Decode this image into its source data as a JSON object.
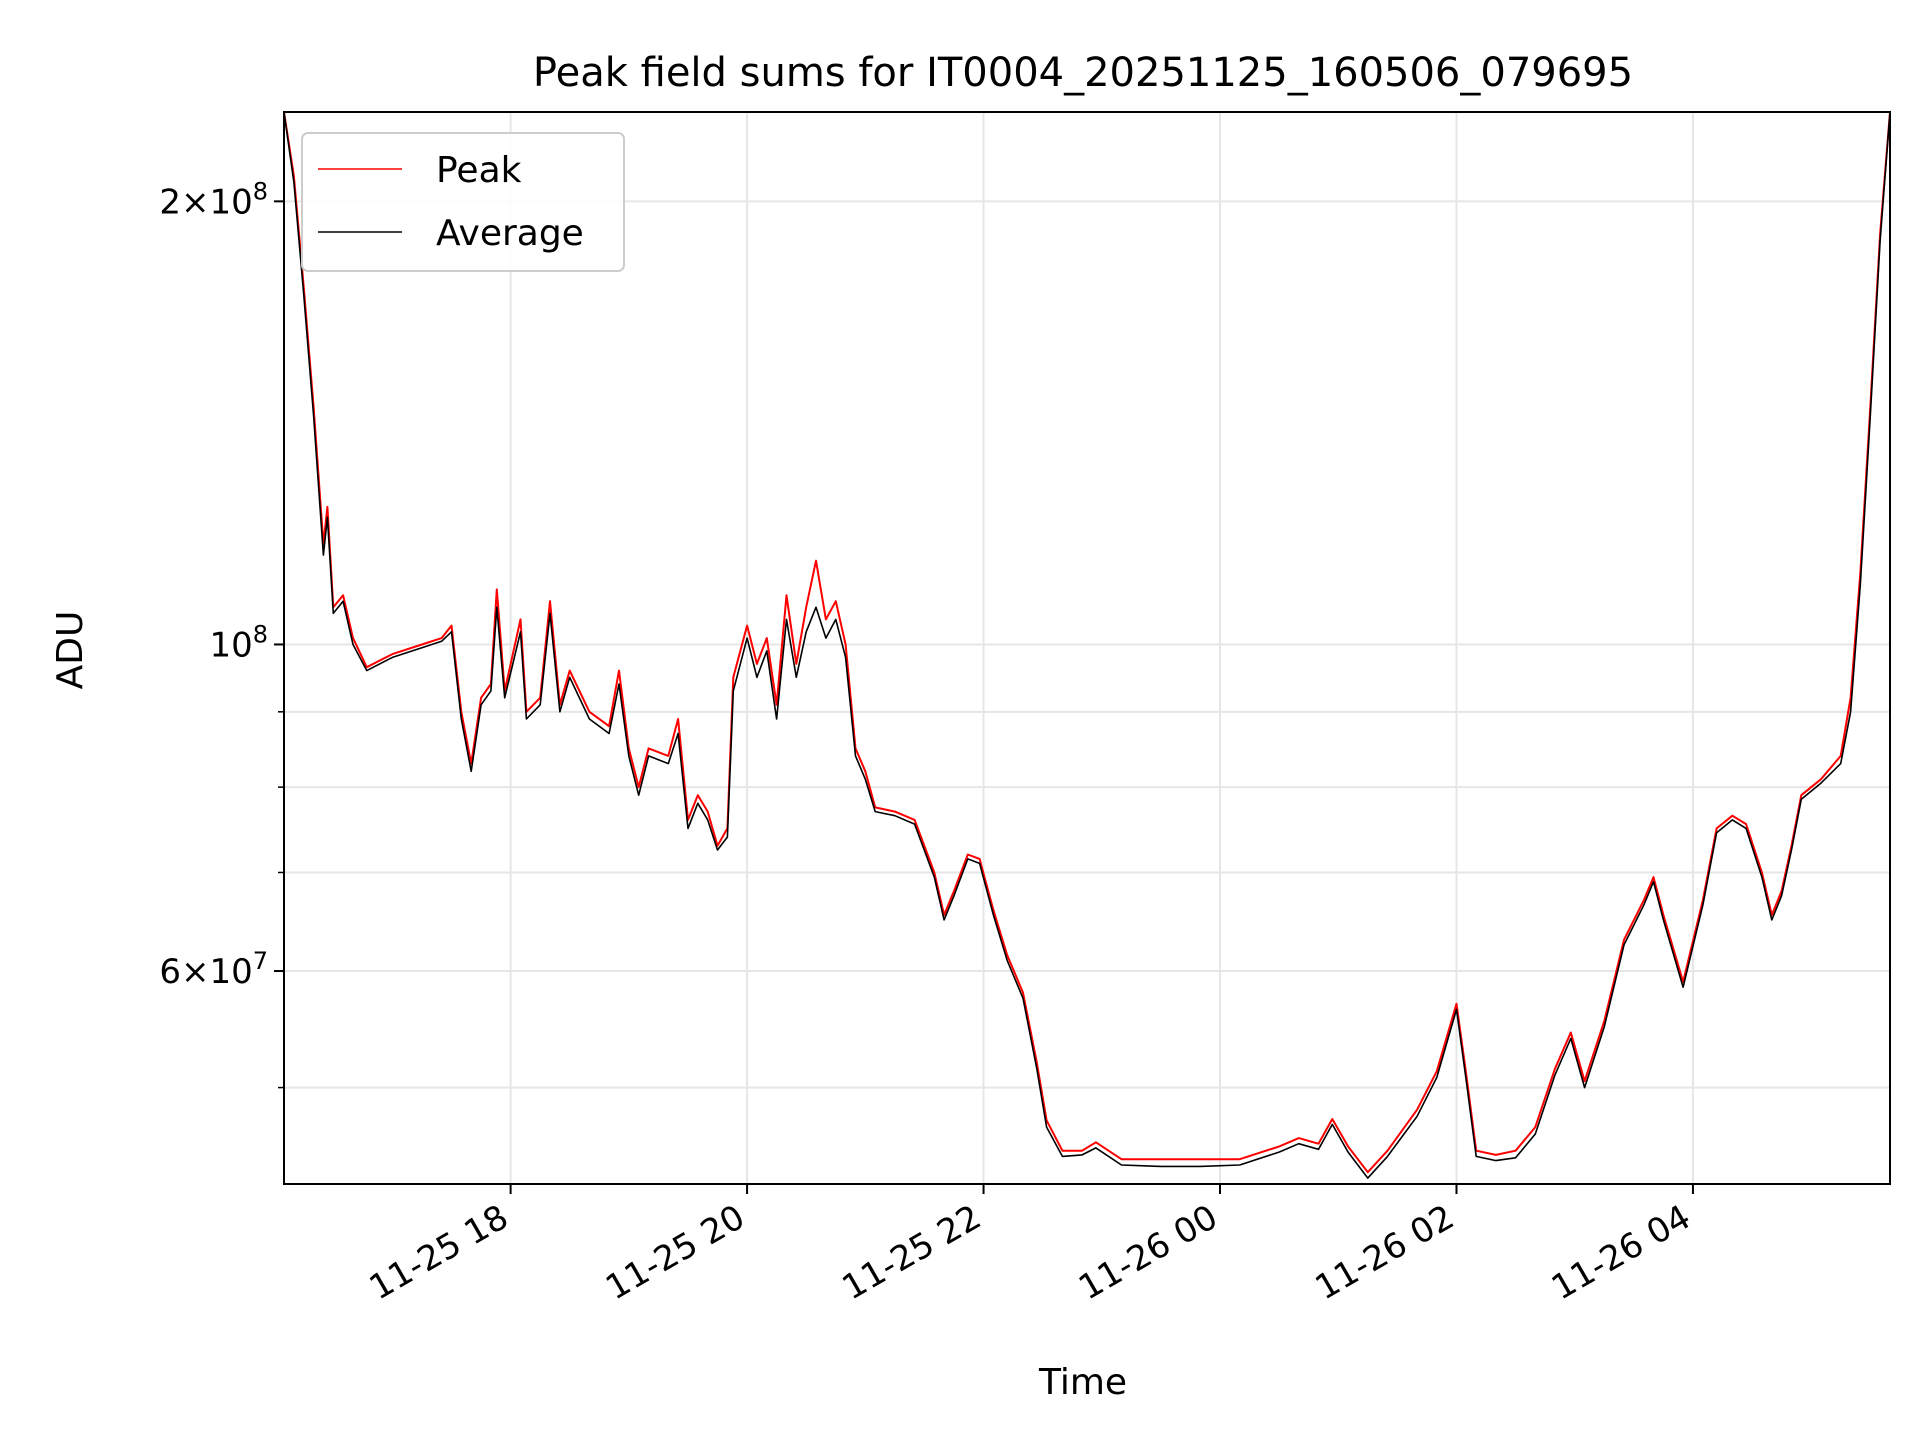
{
  "chart_data": {
    "type": "line",
    "title": "Peak field sums for IT0004_20251125_160506_079695",
    "xlabel": "Time",
    "ylabel": "ADU",
    "yscale": "log",
    "grid": true,
    "legend_position": "upper-left",
    "xlim": [
      "2025-11-25 16:05",
      "2025-11-26 05:40"
    ],
    "ylim": [
      43000000,
      230000000
    ],
    "xticks": [
      {
        "value": "2025-11-25 18:00",
        "label": "11-25 18"
      },
      {
        "value": "2025-11-25 20:00",
        "label": "11-25 20"
      },
      {
        "value": "2025-11-25 22:00",
        "label": "11-25 22"
      },
      {
        "value": "2025-11-26 00:00",
        "label": "11-26 00"
      },
      {
        "value": "2025-11-26 02:00",
        "label": "11-26 02"
      },
      {
        "value": "2025-11-26 04:00",
        "label": "11-26 04"
      }
    ],
    "yticks_major": [
      {
        "value": 60000000,
        "mantissa": "6",
        "exponent": "7"
      },
      {
        "value": 100000000,
        "mantissa": "",
        "exponent": "8"
      },
      {
        "value": 200000000,
        "mantissa": "2",
        "exponent": "8"
      }
    ],
    "yticks_minor": [
      50000000,
      70000000,
      80000000,
      90000000
    ],
    "series": [
      {
        "name": "Peak",
        "color": "#ff0000",
        "points": [
          [
            "2025-11-25 16:05",
            230000000
          ],
          [
            "2025-11-25 16:10",
            208000000
          ],
          [
            "2025-11-25 16:15",
            175000000
          ],
          [
            "2025-11-25 16:20",
            145000000
          ],
          [
            "2025-11-25 16:25",
            117000000
          ],
          [
            "2025-11-25 16:27",
            124000000
          ],
          [
            "2025-11-25 16:30",
            106000000
          ],
          [
            "2025-11-25 16:35",
            108000000
          ],
          [
            "2025-11-25 16:40",
            101000000
          ],
          [
            "2025-11-25 16:47",
            96500000
          ],
          [
            "2025-11-25 17:00",
            98500000
          ],
          [
            "2025-11-25 17:15",
            100000000
          ],
          [
            "2025-11-25 17:25",
            101000000
          ],
          [
            "2025-11-25 17:30",
            103000000
          ],
          [
            "2025-11-25 17:35",
            90000000
          ],
          [
            "2025-11-25 17:40",
            83000000
          ],
          [
            "2025-11-25 17:45",
            92000000
          ],
          [
            "2025-11-25 17:50",
            94000000
          ],
          [
            "2025-11-25 17:53",
            109000000
          ],
          [
            "2025-11-25 17:57",
            93000000
          ],
          [
            "2025-11-25 18:05",
            104000000
          ],
          [
            "2025-11-25 18:08",
            90000000
          ],
          [
            "2025-11-25 18:15",
            92000000
          ],
          [
            "2025-11-25 18:20",
            107000000
          ],
          [
            "2025-11-25 18:25",
            91000000
          ],
          [
            "2025-11-25 18:30",
            96000000
          ],
          [
            "2025-11-25 18:40",
            90000000
          ],
          [
            "2025-11-25 18:50",
            88000000
          ],
          [
            "2025-11-25 18:55",
            96000000
          ],
          [
            "2025-11-25 19:00",
            85000000
          ],
          [
            "2025-11-25 19:05",
            80000000
          ],
          [
            "2025-11-25 19:10",
            85000000
          ],
          [
            "2025-11-25 19:20",
            84000000
          ],
          [
            "2025-11-25 19:25",
            89000000
          ],
          [
            "2025-11-25 19:30",
            76000000
          ],
          [
            "2025-11-25 19:35",
            79000000
          ],
          [
            "2025-11-25 19:40",
            77000000
          ],
          [
            "2025-11-25 19:45",
            73000000
          ],
          [
            "2025-11-25 19:50",
            75000000
          ],
          [
            "2025-11-25 19:53",
            95000000
          ],
          [
            "2025-11-25 20:00",
            103000000
          ],
          [
            "2025-11-25 20:05",
            97000000
          ],
          [
            "2025-11-25 20:10",
            101000000
          ],
          [
            "2025-11-25 20:15",
            91000000
          ],
          [
            "2025-11-25 20:20",
            108000000
          ],
          [
            "2025-11-25 20:25",
            97000000
          ],
          [
            "2025-11-25 20:30",
            106000000
          ],
          [
            "2025-11-25 20:35",
            114000000
          ],
          [
            "2025-11-25 20:40",
            104000000
          ],
          [
            "2025-11-25 20:45",
            107000000
          ],
          [
            "2025-11-25 20:50",
            100000000
          ],
          [
            "2025-11-25 20:55",
            85000000
          ],
          [
            "2025-11-25 21:00",
            82000000
          ],
          [
            "2025-11-25 21:05",
            77500000
          ],
          [
            "2025-11-25 21:15",
            77000000
          ],
          [
            "2025-11-25 21:25",
            76000000
          ],
          [
            "2025-11-25 21:35",
            70000000
          ],
          [
            "2025-11-25 21:40",
            65500000
          ],
          [
            "2025-11-25 21:45",
            68000000
          ],
          [
            "2025-11-25 21:52",
            72000000
          ],
          [
            "2025-11-25 21:58",
            71500000
          ],
          [
            "2025-11-25 22:05",
            66000000
          ],
          [
            "2025-11-25 22:12",
            61500000
          ],
          [
            "2025-11-25 22:20",
            58000000
          ],
          [
            "2025-11-25 22:27",
            52000000
          ],
          [
            "2025-11-25 22:32",
            47500000
          ],
          [
            "2025-11-25 22:40",
            45300000
          ],
          [
            "2025-11-25 22:50",
            45300000
          ],
          [
            "2025-11-25 22:57",
            45900000
          ],
          [
            "2025-11-25 23:10",
            44700000
          ],
          [
            "2025-11-25 23:30",
            44700000
          ],
          [
            "2025-11-25 23:50",
            44700000
          ],
          [
            "2025-11-26 00:10",
            44700000
          ],
          [
            "2025-11-26 00:30",
            45600000
          ],
          [
            "2025-11-26 00:40",
            46200000
          ],
          [
            "2025-11-26 00:50",
            45800000
          ],
          [
            "2025-11-26 00:57",
            47600000
          ],
          [
            "2025-11-26 01:05",
            45600000
          ],
          [
            "2025-11-26 01:15",
            43800000
          ],
          [
            "2025-11-26 01:25",
            45300000
          ],
          [
            "2025-11-26 01:40",
            48300000
          ],
          [
            "2025-11-26 01:50",
            51300000
          ],
          [
            "2025-11-26 02:00",
            57000000
          ],
          [
            "2025-11-26 02:05",
            51000000
          ],
          [
            "2025-11-26 02:10",
            45300000
          ],
          [
            "2025-11-26 02:20",
            45000000
          ],
          [
            "2025-11-26 02:30",
            45300000
          ],
          [
            "2025-11-26 02:40",
            47000000
          ],
          [
            "2025-11-26 02:50",
            51500000
          ],
          [
            "2025-11-26 02:58",
            54500000
          ],
          [
            "2025-11-26 03:05",
            50500000
          ],
          [
            "2025-11-26 03:15",
            55500000
          ],
          [
            "2025-11-26 03:25",
            63000000
          ],
          [
            "2025-11-26 03:35",
            67000000
          ],
          [
            "2025-11-26 03:40",
            69500000
          ],
          [
            "2025-11-26 03:45",
            65500000
          ],
          [
            "2025-11-26 03:55",
            59000000
          ],
          [
            "2025-11-26 04:05",
            67000000
          ],
          [
            "2025-11-26 04:12",
            75000000
          ],
          [
            "2025-11-26 04:20",
            76500000
          ],
          [
            "2025-11-26 04:27",
            75500000
          ],
          [
            "2025-11-26 04:35",
            70000000
          ],
          [
            "2025-11-26 04:40",
            65500000
          ],
          [
            "2025-11-26 04:45",
            68000000
          ],
          [
            "2025-11-26 04:50",
            73000000
          ],
          [
            "2025-11-26 04:55",
            79000000
          ],
          [
            "2025-11-26 05:05",
            81000000
          ],
          [
            "2025-11-26 05:15",
            84000000
          ],
          [
            "2025-11-26 05:20",
            92000000
          ],
          [
            "2025-11-26 05:25",
            112000000
          ],
          [
            "2025-11-26 05:30",
            145000000
          ],
          [
            "2025-11-26 05:35",
            190000000
          ],
          [
            "2025-11-26 05:40",
            230000000
          ]
        ]
      },
      {
        "name": "Average",
        "color": "#000000",
        "points": [
          [
            "2025-11-25 16:05",
            230000000
          ],
          [
            "2025-11-25 16:10",
            206000000
          ],
          [
            "2025-11-25 16:15",
            173000000
          ],
          [
            "2025-11-25 16:20",
            143000000
          ],
          [
            "2025-11-25 16:25",
            115000000
          ],
          [
            "2025-11-25 16:27",
            122000000
          ],
          [
            "2025-11-25 16:30",
            105000000
          ],
          [
            "2025-11-25 16:35",
            107000000
          ],
          [
            "2025-11-25 16:40",
            100000000
          ],
          [
            "2025-11-25 16:47",
            96000000
          ],
          [
            "2025-11-25 17:00",
            98000000
          ],
          [
            "2025-11-25 17:15",
            99500000
          ],
          [
            "2025-11-25 17:25",
            100500000
          ],
          [
            "2025-11-25 17:30",
            102000000
          ],
          [
            "2025-11-25 17:35",
            89000000
          ],
          [
            "2025-11-25 17:40",
            82000000
          ],
          [
            "2025-11-25 17:45",
            91000000
          ],
          [
            "2025-11-25 17:50",
            93000000
          ],
          [
            "2025-11-25 17:53",
            106000000
          ],
          [
            "2025-11-25 17:57",
            92000000
          ],
          [
            "2025-11-25 18:05",
            102000000
          ],
          [
            "2025-11-25 18:08",
            89000000
          ],
          [
            "2025-11-25 18:15",
            91000000
          ],
          [
            "2025-11-25 18:20",
            105000000
          ],
          [
            "2025-11-25 18:25",
            90000000
          ],
          [
            "2025-11-25 18:30",
            95000000
          ],
          [
            "2025-11-25 18:40",
            89000000
          ],
          [
            "2025-11-25 18:50",
            87000000
          ],
          [
            "2025-11-25 18:55",
            94000000
          ],
          [
            "2025-11-25 19:00",
            84000000
          ],
          [
            "2025-11-25 19:05",
            79000000
          ],
          [
            "2025-11-25 19:10",
            84000000
          ],
          [
            "2025-11-25 19:20",
            83000000
          ],
          [
            "2025-11-25 19:25",
            87000000
          ],
          [
            "2025-11-25 19:30",
            75000000
          ],
          [
            "2025-11-25 19:35",
            78000000
          ],
          [
            "2025-11-25 19:40",
            76000000
          ],
          [
            "2025-11-25 19:45",
            72500000
          ],
          [
            "2025-11-25 19:50",
            74000000
          ],
          [
            "2025-11-25 19:53",
            93000000
          ],
          [
            "2025-11-25 20:00",
            101000000
          ],
          [
            "2025-11-25 20:05",
            95000000
          ],
          [
            "2025-11-25 20:10",
            99000000
          ],
          [
            "2025-11-25 20:15",
            89000000
          ],
          [
            "2025-11-25 20:20",
            104000000
          ],
          [
            "2025-11-25 20:25",
            95000000
          ],
          [
            "2025-11-25 20:30",
            102000000
          ],
          [
            "2025-11-25 20:35",
            106000000
          ],
          [
            "2025-11-25 20:40",
            101000000
          ],
          [
            "2025-11-25 20:45",
            104000000
          ],
          [
            "2025-11-25 20:50",
            98000000
          ],
          [
            "2025-11-25 20:55",
            84000000
          ],
          [
            "2025-11-25 21:00",
            81000000
          ],
          [
            "2025-11-25 21:05",
            77000000
          ],
          [
            "2025-11-25 21:15",
            76500000
          ],
          [
            "2025-11-25 21:25",
            75500000
          ],
          [
            "2025-11-25 21:35",
            69500000
          ],
          [
            "2025-11-25 21:40",
            65000000
          ],
          [
            "2025-11-25 21:45",
            67500000
          ],
          [
            "2025-11-25 21:52",
            71500000
          ],
          [
            "2025-11-25 21:58",
            71000000
          ],
          [
            "2025-11-25 22:05",
            65500000
          ],
          [
            "2025-11-25 22:12",
            61000000
          ],
          [
            "2025-11-25 22:20",
            57500000
          ],
          [
            "2025-11-25 22:27",
            51500000
          ],
          [
            "2025-11-25 22:32",
            47000000
          ],
          [
            "2025-11-25 22:40",
            44900000
          ],
          [
            "2025-11-25 22:50",
            45000000
          ],
          [
            "2025-11-25 22:57",
            45500000
          ],
          [
            "2025-11-25 23:10",
            44300000
          ],
          [
            "2025-11-25 23:30",
            44200000
          ],
          [
            "2025-11-25 23:50",
            44200000
          ],
          [
            "2025-11-26 00:10",
            44300000
          ],
          [
            "2025-11-26 00:30",
            45200000
          ],
          [
            "2025-11-26 00:40",
            45800000
          ],
          [
            "2025-11-26 00:50",
            45400000
          ],
          [
            "2025-11-26 00:57",
            47200000
          ],
          [
            "2025-11-26 01:05",
            45200000
          ],
          [
            "2025-11-26 01:15",
            43400000
          ],
          [
            "2025-11-26 01:25",
            44900000
          ],
          [
            "2025-11-26 01:40",
            47800000
          ],
          [
            "2025-11-26 01:50",
            50800000
          ],
          [
            "2025-11-26 02:00",
            56500000
          ],
          [
            "2025-11-26 02:05",
            50500000
          ],
          [
            "2025-11-26 02:10",
            44900000
          ],
          [
            "2025-11-26 02:20",
            44600000
          ],
          [
            "2025-11-26 02:30",
            44800000
          ],
          [
            "2025-11-26 02:40",
            46500000
          ],
          [
            "2025-11-26 02:50",
            51000000
          ],
          [
            "2025-11-26 02:58",
            54000000
          ],
          [
            "2025-11-26 03:05",
            50000000
          ],
          [
            "2025-11-26 03:15",
            55000000
          ],
          [
            "2025-11-26 03:25",
            62500000
          ],
          [
            "2025-11-26 03:35",
            66500000
          ],
          [
            "2025-11-26 03:40",
            69000000
          ],
          [
            "2025-11-26 03:45",
            65000000
          ],
          [
            "2025-11-26 03:55",
            58500000
          ],
          [
            "2025-11-26 04:05",
            66500000
          ],
          [
            "2025-11-26 04:12",
            74500000
          ],
          [
            "2025-11-26 04:20",
            76000000
          ],
          [
            "2025-11-26 04:27",
            75000000
          ],
          [
            "2025-11-26 04:35",
            69500000
          ],
          [
            "2025-11-26 04:40",
            65000000
          ],
          [
            "2025-11-26 04:45",
            67500000
          ],
          [
            "2025-11-26 04:50",
            72500000
          ],
          [
            "2025-11-26 04:55",
            78500000
          ],
          [
            "2025-11-26 05:05",
            80500000
          ],
          [
            "2025-11-26 05:15",
            83000000
          ],
          [
            "2025-11-26 05:20",
            90000000
          ],
          [
            "2025-11-26 05:25",
            110000000
          ],
          [
            "2025-11-26 05:30",
            143000000
          ],
          [
            "2025-11-26 05:35",
            188000000
          ],
          [
            "2025-11-26 05:40",
            230000000
          ]
        ]
      }
    ]
  }
}
